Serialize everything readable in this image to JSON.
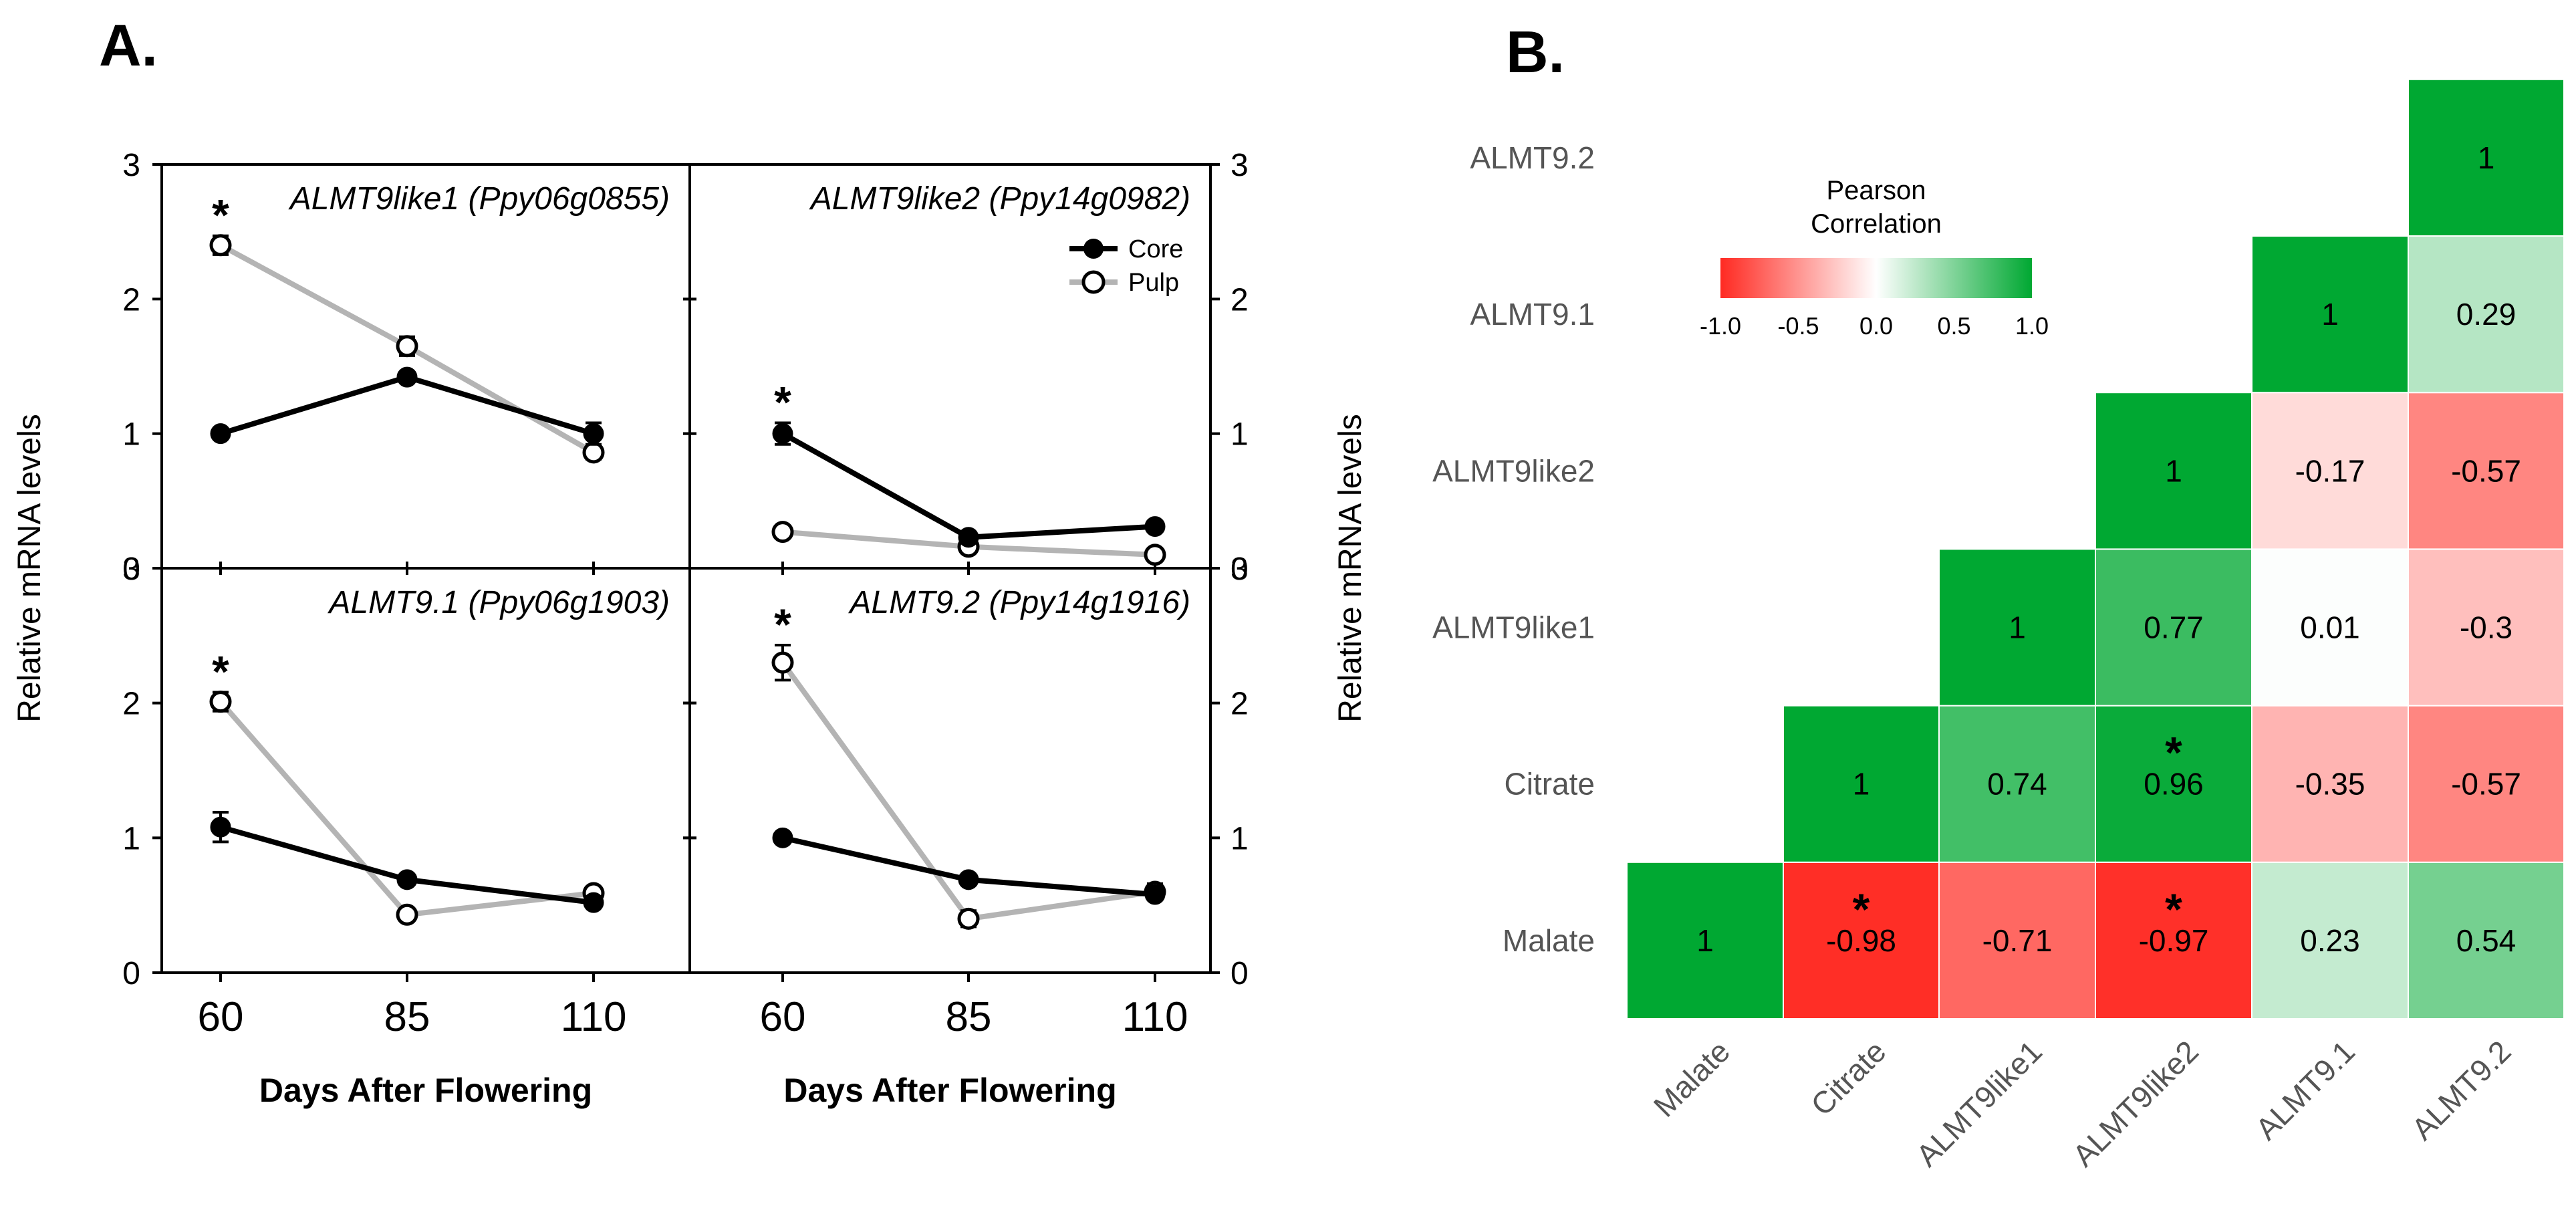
{
  "figure": {
    "panel_a_letter": "A.",
    "panel_b_letter": "B."
  },
  "chart_data": [
    {
      "type": "line",
      "title": "ALMT9like1 (Ppy06g0855)",
      "x": [
        60,
        85,
        110
      ],
      "series": [
        {
          "name": "Core",
          "values": [
            1.0,
            1.42,
            1.0
          ],
          "errors": [
            0.0,
            0.0,
            0.08
          ],
          "color": "#000000"
        },
        {
          "name": "Pulp",
          "values": [
            2.4,
            1.65,
            0.86
          ],
          "errors": [
            0.07,
            0.07,
            0.05
          ],
          "color": "#b4b4b4"
        }
      ],
      "significance_x": [
        60
      ],
      "ylim": [
        0,
        3
      ],
      "yticks": [
        "0",
        "1",
        "2",
        "3"
      ],
      "xticks": [
        "60",
        "85",
        "110"
      ],
      "ylabel": "Relative mRNA levels",
      "xlabel": "Days After Flowering"
    },
    {
      "type": "line",
      "title": "ALMT9like2 (Ppy14g0982)",
      "x": [
        60,
        85,
        110
      ],
      "series": [
        {
          "name": "Core",
          "values": [
            1.0,
            0.23,
            0.31
          ],
          "errors": [
            0.08,
            0.0,
            0.0
          ],
          "color": "#000000"
        },
        {
          "name": "Pulp",
          "values": [
            0.27,
            0.16,
            0.1
          ],
          "errors": [
            0.0,
            0.0,
            0.0
          ],
          "color": "#b4b4b4"
        }
      ],
      "significance_x": [
        60
      ],
      "ylim": [
        0,
        3
      ],
      "yticks": [
        "0",
        "1",
        "2",
        "3"
      ],
      "xticks": [
        "60",
        "85",
        "110"
      ],
      "ylabel": "Relative mRNA levels",
      "xlabel": "Days After Flowering",
      "legend": [
        "Core",
        "Pulp"
      ]
    },
    {
      "type": "line",
      "title": "ALMT9.1 (Ppy06g1903)",
      "x": [
        60,
        85,
        110
      ],
      "series": [
        {
          "name": "Core",
          "values": [
            1.08,
            0.69,
            0.52
          ],
          "errors": [
            0.11,
            0.0,
            0.0
          ],
          "color": "#000000"
        },
        {
          "name": "Pulp",
          "values": [
            2.01,
            0.43,
            0.59
          ],
          "errors": [
            0.07,
            0.0,
            0.0
          ],
          "color": "#b4b4b4"
        }
      ],
      "significance_x": [
        60
      ],
      "ylim": [
        0,
        3
      ],
      "yticks": [
        "0",
        "1",
        "2",
        "3"
      ],
      "xticks": [
        "60",
        "85",
        "110"
      ],
      "ylabel": "Relative mRNA levels",
      "xlabel": "Days After Flowering"
    },
    {
      "type": "line",
      "title": "ALMT9.2 (Ppy14g1916)",
      "x": [
        60,
        85,
        110
      ],
      "series": [
        {
          "name": "Core",
          "values": [
            1.0,
            0.69,
            0.58
          ],
          "errors": [
            0.0,
            0.0,
            0.0
          ],
          "color": "#000000"
        },
        {
          "name": "Pulp",
          "values": [
            2.3,
            0.4,
            0.6
          ],
          "errors": [
            0.13,
            0.06,
            0.06
          ],
          "color": "#b4b4b4"
        }
      ],
      "significance_x": [
        60
      ],
      "ylim": [
        0,
        3
      ],
      "yticks": [
        "0",
        "1",
        "2",
        "3"
      ],
      "xticks": [
        "60",
        "85",
        "110"
      ],
      "ylabel": "Relative mRNA levels",
      "xlabel": "Days After Flowering"
    },
    {
      "type": "heatmap",
      "title": "Pearson Correlation",
      "variables": [
        "Malate",
        "Citrate",
        "ALMT9like1",
        "ALMT9like2",
        "ALMT9.1",
        "ALMT9.2"
      ],
      "cells": [
        {
          "row": "Malate",
          "col": "Malate",
          "value": 1,
          "label": "1",
          "significant": false
        },
        {
          "row": "Malate",
          "col": "Citrate",
          "value": -0.98,
          "label": "-0.98",
          "significant": true
        },
        {
          "row": "Malate",
          "col": "ALMT9like1",
          "value": -0.71,
          "label": "-0.71",
          "significant": false
        },
        {
          "row": "Malate",
          "col": "ALMT9like2",
          "value": -0.97,
          "label": "-0.97",
          "significant": true
        },
        {
          "row": "Malate",
          "col": "ALMT9.1",
          "value": 0.23,
          "label": "0.23",
          "significant": false
        },
        {
          "row": "Malate",
          "col": "ALMT9.2",
          "value": 0.54,
          "label": "0.54",
          "significant": false
        },
        {
          "row": "Citrate",
          "col": "Citrate",
          "value": 1,
          "label": "1",
          "significant": false
        },
        {
          "row": "Citrate",
          "col": "ALMT9like1",
          "value": 0.74,
          "label": "0.74",
          "significant": false
        },
        {
          "row": "Citrate",
          "col": "ALMT9like2",
          "value": 0.96,
          "label": "0.96",
          "significant": true
        },
        {
          "row": "Citrate",
          "col": "ALMT9.1",
          "value": -0.35,
          "label": "-0.35",
          "significant": false
        },
        {
          "row": "Citrate",
          "col": "ALMT9.2",
          "value": -0.57,
          "label": "-0.57",
          "significant": false
        },
        {
          "row": "ALMT9like1",
          "col": "ALMT9like1",
          "value": 1,
          "label": "1",
          "significant": false
        },
        {
          "row": "ALMT9like1",
          "col": "ALMT9like2",
          "value": 0.77,
          "label": "0.77",
          "significant": false
        },
        {
          "row": "ALMT9like1",
          "col": "ALMT9.1",
          "value": 0.01,
          "label": "0.01",
          "significant": false
        },
        {
          "row": "ALMT9like1",
          "col": "ALMT9.2",
          "value": -0.3,
          "label": "-0.3",
          "significant": false
        },
        {
          "row": "ALMT9like2",
          "col": "ALMT9like2",
          "value": 1,
          "label": "1",
          "significant": false
        },
        {
          "row": "ALMT9like2",
          "col": "ALMT9.1",
          "value": -0.17,
          "label": "-0.17",
          "significant": false
        },
        {
          "row": "ALMT9like2",
          "col": "ALMT9.2",
          "value": -0.57,
          "label": "-0.57",
          "significant": false
        },
        {
          "row": "ALMT9.1",
          "col": "ALMT9.1",
          "value": 1,
          "label": "1",
          "significant": false
        },
        {
          "row": "ALMT9.1",
          "col": "ALMT9.2",
          "value": 0.29,
          "label": "0.29",
          "significant": false
        },
        {
          "row": "ALMT9.2",
          "col": "ALMT9.2",
          "value": 1,
          "label": "1",
          "significant": false
        }
      ],
      "colorbar": {
        "title_line1": "Pearson",
        "title_line2": "Correlation",
        "range": [
          -1.0,
          1.0
        ],
        "ticks": [
          "-1.0",
          "-0.5",
          "0.0",
          "0.5",
          "1.0"
        ],
        "colors": {
          "negative": "#ff2a22",
          "zero": "#ffffff",
          "positive": "#00a832"
        }
      }
    }
  ]
}
